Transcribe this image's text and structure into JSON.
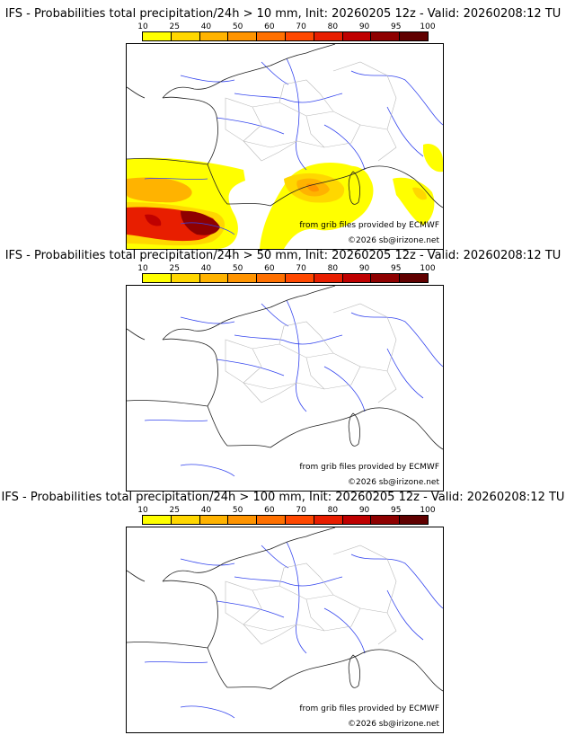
{
  "colorbar": {
    "ticks": [
      "10",
      "25",
      "40",
      "50",
      "60",
      "70",
      "80",
      "90",
      "95",
      "100"
    ],
    "colors": [
      "#ffff00",
      "#ffd700",
      "#ffb300",
      "#ff9400",
      "#ff7000",
      "#ff4800",
      "#e81e00",
      "#bf0000",
      "#8e0000",
      "#600000"
    ]
  },
  "panels": [
    {
      "title": "IFS - Probabilities total precipitation/24h > 10 mm, Init: 20260205 12z - Valid: 20260208:12 TU",
      "threshold_mm": 10,
      "credit_source": "from grib files provided by ECMWF",
      "credit_copyright": "©2026 sb@irizone.net"
    },
    {
      "title": "IFS - Probabilities total precipitation/24h > 50 mm, Init: 20260205 12z - Valid: 20260208:12 TU",
      "threshold_mm": 50,
      "credit_source": "from grib files provided by ECMWF",
      "credit_copyright": "©2026 sb@irizone.net"
    },
    {
      "title": "IFS - Probabilities total precipitation/24h > 100 mm, Init: 20260205 12z - Valid: 20260208:12 TU",
      "threshold_mm": 100,
      "credit_source": "from grib files provided by ECMWF",
      "credit_copyright": "©2026 sb@irizone.net"
    }
  ]
}
